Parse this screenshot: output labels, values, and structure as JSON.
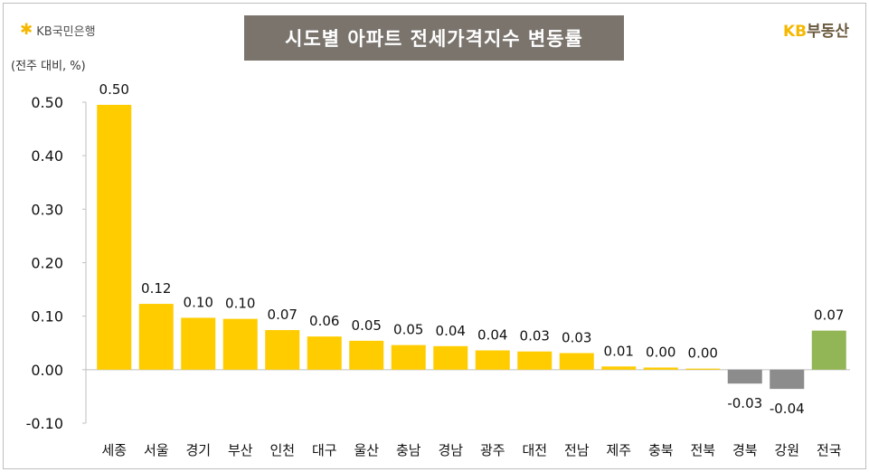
{
  "header": {
    "left_brand": "KB국민은행",
    "title": "시도별 아파트 전세가격지수 변동률",
    "right_brand_prefix": "KB",
    "right_brand_suffix": "부동산",
    "unit": "(전주 대비, %)"
  },
  "colors": {
    "positive": "#ffcc00",
    "negative": "#8c8c8c",
    "national": "#92b556",
    "title_bg": "#7a746d"
  },
  "chart_data": {
    "type": "bar",
    "title": "시도별 아파트 전세가격지수 변동률",
    "ylabel": "(전주 대비, %)",
    "ylim": [
      -0.1,
      0.5
    ],
    "yticks": [
      "0.50",
      "0.40",
      "0.30",
      "0.20",
      "0.10",
      "0.00",
      "-0.10"
    ],
    "categories": [
      "세종",
      "서울",
      "경기",
      "부산",
      "인천",
      "대구",
      "울산",
      "충남",
      "경남",
      "광주",
      "대전",
      "전남",
      "제주",
      "충북",
      "전북",
      "경북",
      "강원",
      "전국"
    ],
    "values": [
      0.495,
      0.123,
      0.097,
      0.095,
      0.074,
      0.062,
      0.054,
      0.046,
      0.044,
      0.036,
      0.034,
      0.031,
      0.006,
      0.004,
      0.002,
      -0.026,
      -0.036,
      0.073
    ],
    "labels": [
      "0.50",
      "0.12",
      "0.10",
      "0.10",
      "0.07",
      "0.06",
      "0.05",
      "0.05",
      "0.04",
      "0.04",
      "0.03",
      "0.03",
      "0.01",
      "0.00",
      "0.00",
      "-0.03",
      "-0.04",
      "0.07"
    ],
    "grid": false,
    "legend": "none"
  }
}
